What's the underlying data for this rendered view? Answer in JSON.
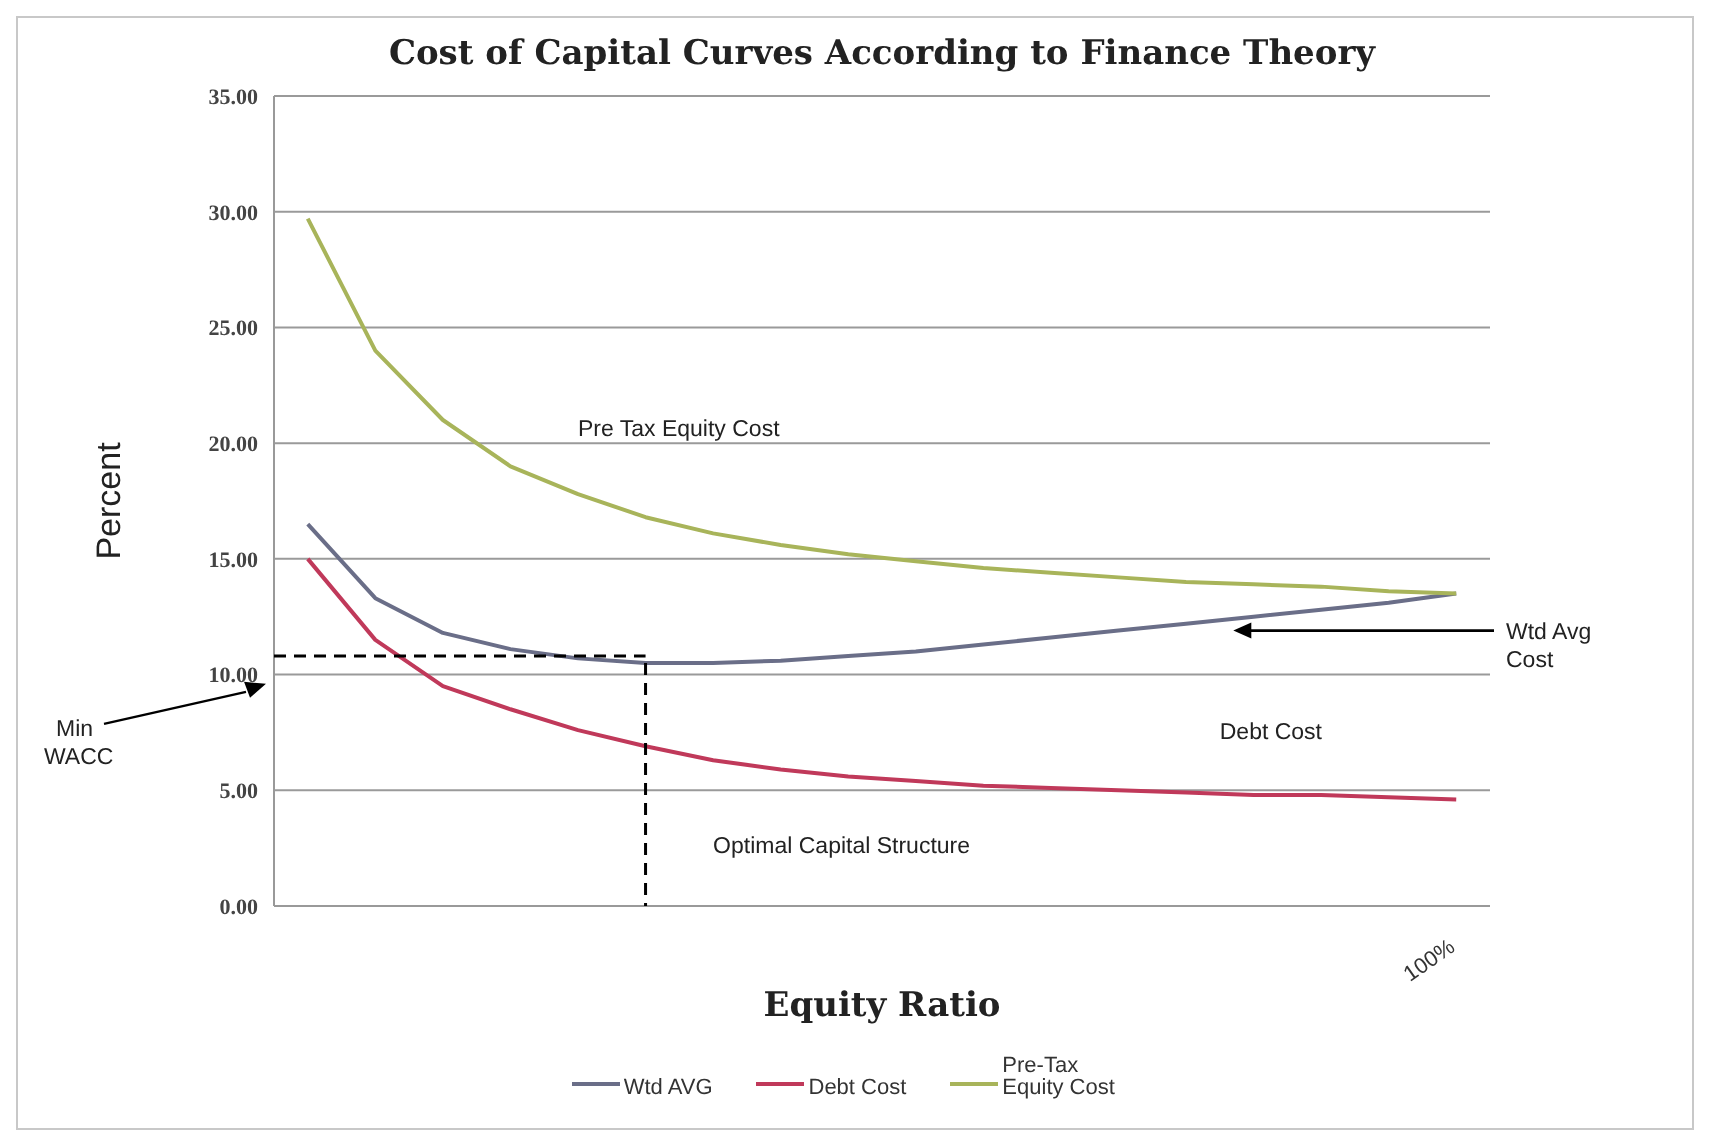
{
  "chart_data": {
    "type": "line",
    "title": "Cost of Capital Curves According to Finance Theory",
    "xlabel": "Equity Ratio",
    "ylabel": "Percent",
    "categories": [
      null,
      null,
      null,
      null,
      null,
      null,
      null,
      null,
      null,
      null,
      null,
      null,
      null,
      null,
      null,
      null,
      null,
      "100%"
    ],
    "ylim": [
      0,
      35
    ],
    "yticks": [
      {
        "value": 0,
        "label": "0.00"
      },
      {
        "value": 5,
        "label": "5.00"
      },
      {
        "value": 10,
        "label": "10.00"
      },
      {
        "value": 15,
        "label": "15.00"
      },
      {
        "value": 20,
        "label": "20.00"
      },
      {
        "value": 25,
        "label": "25.00"
      },
      {
        "value": 30,
        "label": "30.00"
      },
      {
        "value": 35,
        "label": "35.00"
      }
    ],
    "grid": "y",
    "legend": "bottom",
    "marker": "none",
    "line_style": "solid",
    "series": [
      {
        "name": "Wtd AVG",
        "color": "#6a6e88",
        "values": [
          16.5,
          13.3,
          11.8,
          11.1,
          10.7,
          10.5,
          10.5,
          10.6,
          10.8,
          11.0,
          11.3,
          11.6,
          11.9,
          12.2,
          12.5,
          12.8,
          13.1,
          13.5
        ]
      },
      {
        "name": "Debt Cost",
        "color": "#c0395a",
        "values": [
          15.0,
          11.5,
          9.5,
          8.5,
          7.6,
          6.9,
          6.3,
          5.9,
          5.6,
          5.4,
          5.2,
          5.1,
          5.0,
          4.9,
          4.8,
          4.8,
          4.7,
          4.6
        ]
      },
      {
        "name": "Pre-Tax Equity Cost",
        "color": "#a8b45a",
        "values": [
          29.7,
          24.0,
          21.0,
          19.0,
          17.8,
          16.8,
          16.1,
          15.6,
          15.2,
          14.9,
          14.6,
          14.4,
          14.2,
          14.0,
          13.9,
          13.8,
          13.6,
          13.5
        ]
      }
    ],
    "ref_lines": [
      {
        "axis": "y",
        "value": 10.8,
        "color": "#000000",
        "line_style": "dashed"
      },
      {
        "axis": "x",
        "color": "#000000",
        "line_style": "dashed"
      }
    ],
    "annotations": [
      "Pre Tax Equity Cost",
      "Debt Cost",
      "Optimal Capital Structure",
      "Wtd Avg Cost",
      "Min WACC"
    ]
  }
}
